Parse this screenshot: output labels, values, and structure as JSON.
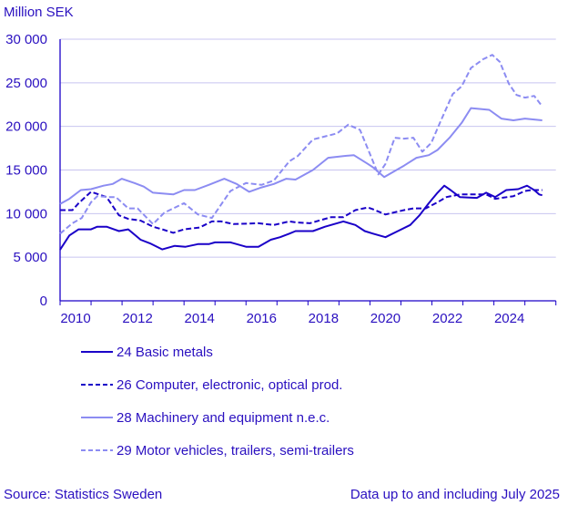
{
  "chart_data": {
    "type": "line",
    "ylabel": "Million SEK",
    "ylim": [
      0,
      30000
    ],
    "xlim": [
      2010.0,
      2026.0
    ],
    "yticks": [
      0,
      5000,
      10000,
      15000,
      20000,
      25000,
      30000
    ],
    "ytick_labels": [
      "0",
      "5 000",
      "10 000",
      "15 000",
      "20 000",
      "25 000",
      "30 000"
    ],
    "xtick_labels": [
      "2010",
      "2012",
      "2014",
      "2016",
      "2018",
      "2020",
      "2022",
      "2024"
    ],
    "grid": "horizontal",
    "legend_placement": "bottom-left",
    "series": [
      {
        "name": "24 Basic metals",
        "color": "#1a00c8",
        "dashed": false,
        "points": [
          [
            2010.0,
            5860
          ],
          [
            2010.3,
            7500
          ],
          [
            2010.6,
            8200
          ],
          [
            2011.0,
            8200
          ],
          [
            2011.2,
            8500
          ],
          [
            2011.5,
            8500
          ],
          [
            2011.9,
            8000
          ],
          [
            2012.2,
            8200
          ],
          [
            2012.6,
            7000
          ],
          [
            2012.9,
            6600
          ],
          [
            2013.3,
            5900
          ],
          [
            2013.7,
            6300
          ],
          [
            2014.05,
            6200
          ],
          [
            2014.45,
            6500
          ],
          [
            2014.8,
            6500
          ],
          [
            2015.0,
            6700
          ],
          [
            2015.5,
            6700
          ],
          [
            2016.0,
            6200
          ],
          [
            2016.4,
            6200
          ],
          [
            2016.8,
            7000
          ],
          [
            2017.1,
            7300
          ],
          [
            2017.4,
            7700
          ],
          [
            2017.6,
            8000
          ],
          [
            2018.16,
            8000
          ],
          [
            2018.55,
            8500
          ],
          [
            2019.14,
            9100
          ],
          [
            2019.53,
            8700
          ],
          [
            2019.83,
            8000
          ],
          [
            2020.1,
            7700
          ],
          [
            2020.5,
            7300
          ],
          [
            2020.9,
            8000
          ],
          [
            2021.3,
            8700
          ],
          [
            2021.6,
            9800
          ],
          [
            2021.9,
            11200
          ],
          [
            2022.18,
            12400
          ],
          [
            2022.4,
            13200
          ],
          [
            2022.6,
            12700
          ],
          [
            2022.9,
            11900
          ],
          [
            2023.45,
            11800
          ],
          [
            2023.75,
            12400
          ],
          [
            2024.04,
            11900
          ],
          [
            2024.4,
            12700
          ],
          [
            2024.78,
            12800
          ],
          [
            2025.07,
            13200
          ],
          [
            2025.3,
            12700
          ],
          [
            2025.46,
            12200
          ],
          [
            2025.56,
            12100
          ]
        ]
      },
      {
        "name": "26 Computer, electronic, optical prod.",
        "color": "#1a00c8",
        "dashed": true,
        "points": [
          [
            2010.0,
            10400
          ],
          [
            2010.4,
            10400
          ],
          [
            2010.6,
            11200
          ],
          [
            2011.0,
            12500
          ],
          [
            2011.5,
            11900
          ],
          [
            2011.9,
            9800
          ],
          [
            2012.2,
            9400
          ],
          [
            2012.6,
            9200
          ],
          [
            2013.0,
            8500
          ],
          [
            2013.3,
            8200
          ],
          [
            2013.65,
            7800
          ],
          [
            2014.0,
            8200
          ],
          [
            2014.5,
            8400
          ],
          [
            2014.9,
            9100
          ],
          [
            2015.2,
            9100
          ],
          [
            2015.6,
            8800
          ],
          [
            2016.4,
            8900
          ],
          [
            2016.9,
            8700
          ],
          [
            2017.4,
            9100
          ],
          [
            2017.6,
            9000
          ],
          [
            2018.06,
            8900
          ],
          [
            2018.75,
            9600
          ],
          [
            2019.14,
            9600
          ],
          [
            2019.53,
            10400
          ],
          [
            2019.93,
            10700
          ],
          [
            2020.1,
            10500
          ],
          [
            2020.5,
            9900
          ],
          [
            2021.1,
            10400
          ],
          [
            2021.4,
            10600
          ],
          [
            2021.8,
            10600
          ],
          [
            2022.18,
            11300
          ],
          [
            2022.47,
            11900
          ],
          [
            2022.9,
            12200
          ],
          [
            2023.26,
            12200
          ],
          [
            2023.75,
            12200
          ],
          [
            2024.04,
            11700
          ],
          [
            2024.63,
            12000
          ],
          [
            2025.0,
            12600
          ],
          [
            2025.22,
            12700
          ],
          [
            2025.56,
            12700
          ]
        ]
      },
      {
        "name": "28 Machinery and equipment n.e.c.",
        "color": "#8c8cf2",
        "dashed": false,
        "points": [
          [
            2010.0,
            11100
          ],
          [
            2010.3,
            11700
          ],
          [
            2010.67,
            12700
          ],
          [
            2011.0,
            12800
          ],
          [
            2011.4,
            13200
          ],
          [
            2011.7,
            13400
          ],
          [
            2011.99,
            14000
          ],
          [
            2012.4,
            13500
          ],
          [
            2012.7,
            13100
          ],
          [
            2013.0,
            12400
          ],
          [
            2013.3,
            12300
          ],
          [
            2013.65,
            12200
          ],
          [
            2014.0,
            12700
          ],
          [
            2014.35,
            12700
          ],
          [
            2014.8,
            13300
          ],
          [
            2015.3,
            14000
          ],
          [
            2015.7,
            13400
          ],
          [
            2016.1,
            12500
          ],
          [
            2016.5,
            13000
          ],
          [
            2016.9,
            13400
          ],
          [
            2017.3,
            14000
          ],
          [
            2017.6,
            13900
          ],
          [
            2018.16,
            15000
          ],
          [
            2018.65,
            16400
          ],
          [
            2019.14,
            16600
          ],
          [
            2019.48,
            16700
          ],
          [
            2019.93,
            15700
          ],
          [
            2020.1,
            15300
          ],
          [
            2020.46,
            14200
          ],
          [
            2020.76,
            14800
          ],
          [
            2021.1,
            15500
          ],
          [
            2021.5,
            16400
          ],
          [
            2021.9,
            16700
          ],
          [
            2022.18,
            17300
          ],
          [
            2022.57,
            18700
          ],
          [
            2022.96,
            20400
          ],
          [
            2023.26,
            22100
          ],
          [
            2023.85,
            21900
          ],
          [
            2024.24,
            20900
          ],
          [
            2024.63,
            20700
          ],
          [
            2025.0,
            20900
          ],
          [
            2025.56,
            20700
          ]
        ]
      },
      {
        "name": "29 Motor vehicles, trailers, semi-trailers",
        "color": "#8c8cf2",
        "dashed": true,
        "points": [
          [
            2010.0,
            7700
          ],
          [
            2010.4,
            8900
          ],
          [
            2010.7,
            9500
          ],
          [
            2011.0,
            11300
          ],
          [
            2011.2,
            12000
          ],
          [
            2011.6,
            11900
          ],
          [
            2011.8,
            11900
          ],
          [
            2012.2,
            10600
          ],
          [
            2012.5,
            10600
          ],
          [
            2013.0,
            8800
          ],
          [
            2013.36,
            10100
          ],
          [
            2014.0,
            11200
          ],
          [
            2014.45,
            9900
          ],
          [
            2014.9,
            9500
          ],
          [
            2015.5,
            12600
          ],
          [
            2016.0,
            13500
          ],
          [
            2016.5,
            13300
          ],
          [
            2016.9,
            13800
          ],
          [
            2017.4,
            16000
          ],
          [
            2017.67,
            16600
          ],
          [
            2018.16,
            18500
          ],
          [
            2018.94,
            19200
          ],
          [
            2019.3,
            20200
          ],
          [
            2019.68,
            19600
          ],
          [
            2019.97,
            17100
          ],
          [
            2020.27,
            14500
          ],
          [
            2020.5,
            15700
          ],
          [
            2020.8,
            18700
          ],
          [
            2021.1,
            18600
          ],
          [
            2021.4,
            18700
          ],
          [
            2021.69,
            17100
          ],
          [
            2021.98,
            18100
          ],
          [
            2022.28,
            20600
          ],
          [
            2022.67,
            23700
          ],
          [
            2022.96,
            24600
          ],
          [
            2023.26,
            26700
          ],
          [
            2023.65,
            27700
          ],
          [
            2023.95,
            28200
          ],
          [
            2024.19,
            27400
          ],
          [
            2024.48,
            24900
          ],
          [
            2024.73,
            23600
          ],
          [
            2025.0,
            23300
          ],
          [
            2025.3,
            23500
          ],
          [
            2025.56,
            22300
          ]
        ]
      }
    ]
  },
  "footer": {
    "source": "Source: Statistics Sweden",
    "note": "Data up to and including July 2025"
  }
}
